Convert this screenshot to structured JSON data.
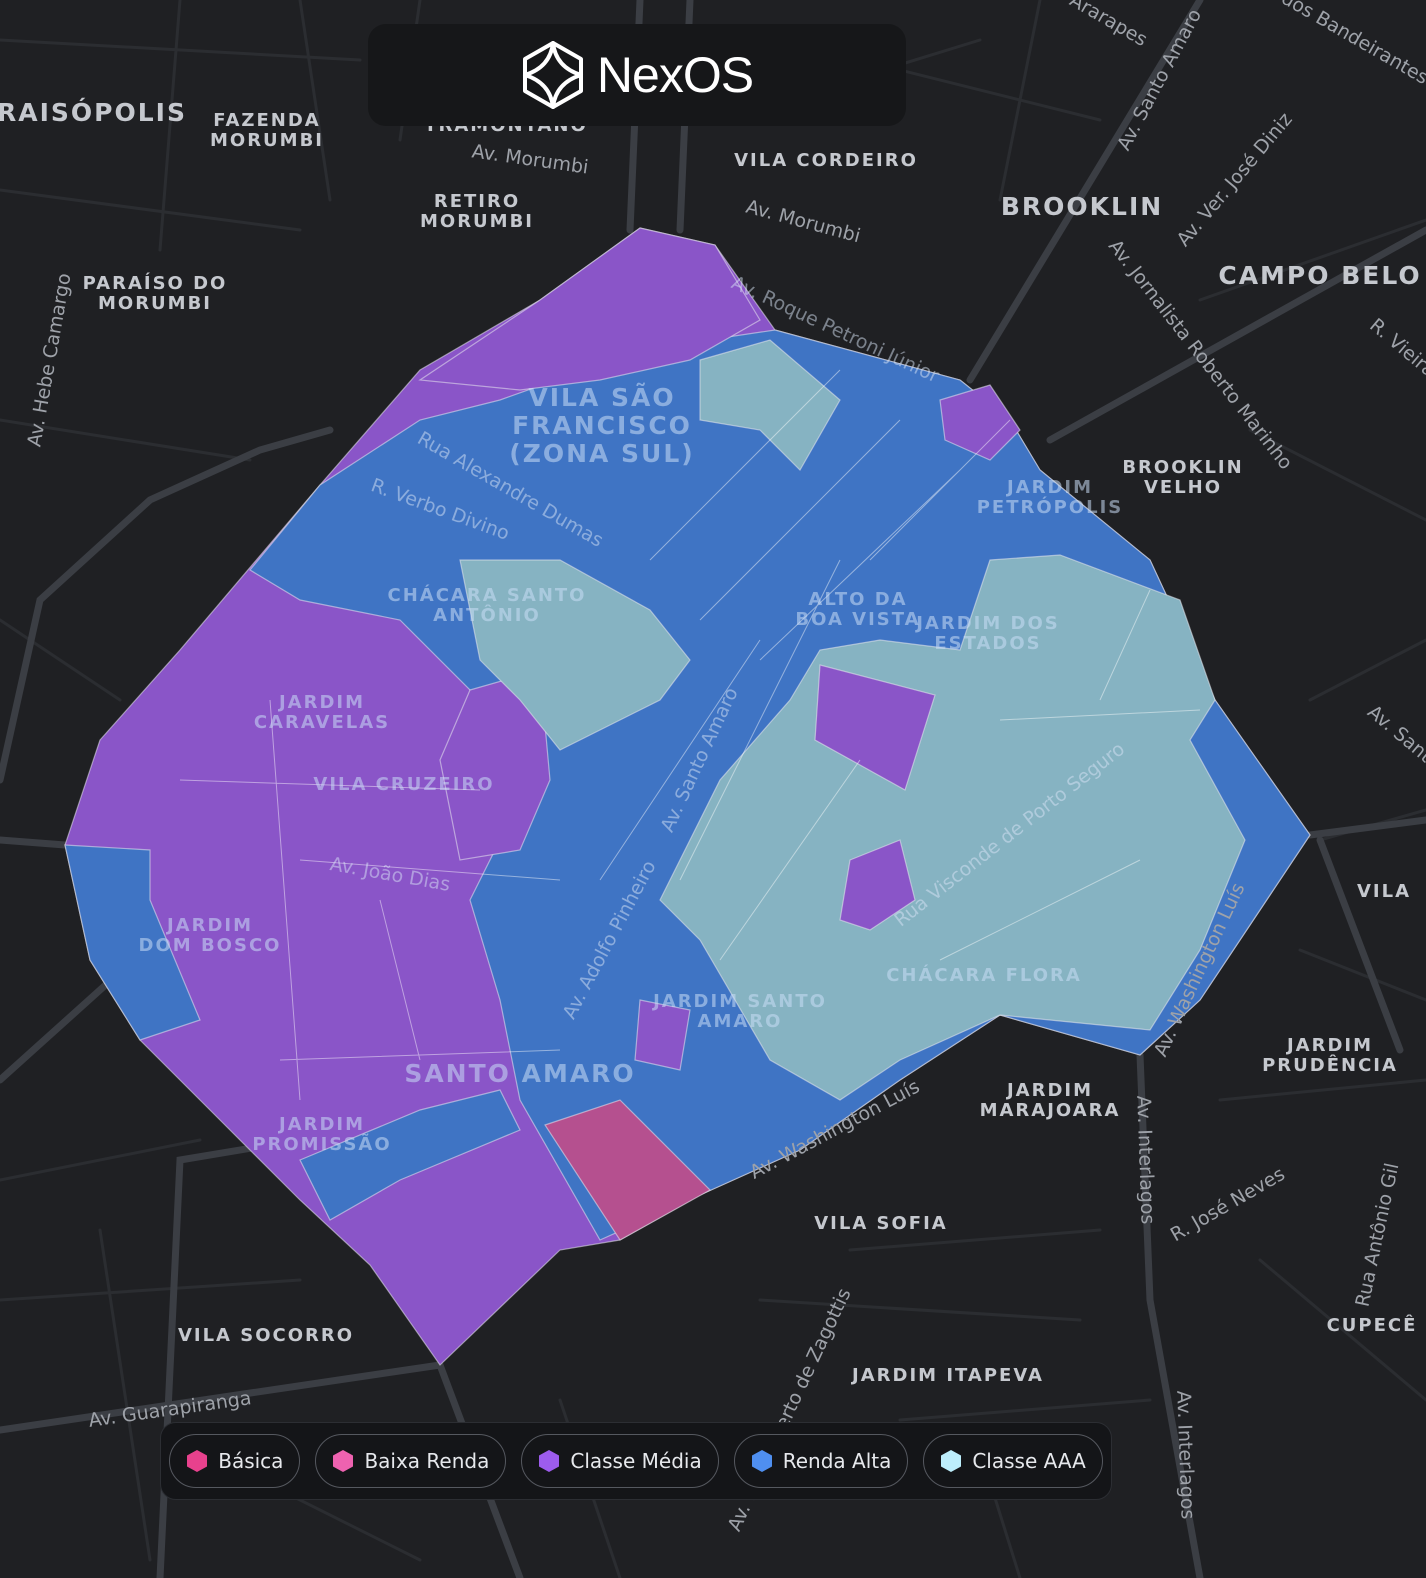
{
  "header": {
    "brand": "NexOS"
  },
  "map": {
    "neighborhoods": [
      [
        "RAISÓPOLIS"
      ],
      [
        "FAZENDA",
        "MORUMBI"
      ],
      [
        "TRAMONTANO"
      ],
      [
        "VILA CORDEIRO"
      ],
      [
        "RETIRO",
        "MORUMBI"
      ],
      [
        "BROOKLIN"
      ],
      [
        "CAMPO BELO"
      ],
      [
        "PARAÍSO DO",
        "MORUMBI"
      ],
      [
        "VILA SÃO",
        "FRANCISCO",
        "(ZONA SUL)"
      ],
      [
        "BROOKLIN",
        "VELHO"
      ],
      [
        "JARDIM",
        "PETRÓPOLIS"
      ],
      [
        "CHÁCARA SANTO",
        "ANTÔNIO"
      ],
      [
        "ALTO DA",
        "BOA VISTA"
      ],
      [
        "JARDIM DOS",
        "ESTADOS"
      ],
      [
        "JARDIM",
        "CARAVELAS"
      ],
      [
        "VILA CRUZEIRO"
      ],
      [
        "JARDIM",
        "DOM BOSCO"
      ],
      [
        "VILA"
      ],
      [
        "CHÁCARA FLORA"
      ],
      [
        "JARDIM SANTO",
        "AMARO"
      ],
      [
        "JARDIM",
        "PRUDÊNCIA"
      ],
      [
        "SANTO AMARO"
      ],
      [
        "JARDIM",
        "MARAJOARA"
      ],
      [
        "JARDIM",
        "PROMISSÃO"
      ],
      [
        "VILA SOFIA"
      ],
      [
        "VILA SOCORRO"
      ],
      [
        "CUPECÊ"
      ],
      [
        "JARDIM ITAPEVA"
      ]
    ],
    "streets": [
      "Av. Morumbi",
      "Av. Morumbi",
      "Av. Santo Amaro",
      "Av. Ver. José Diniz",
      "Av. Jornalista Roberto Marinho",
      "Av. Roque Petroni Júnior",
      "Rua Alexandre Dumas",
      "R. Verbo Divino",
      "Av. Hebe Camargo",
      "Av. Santo Amaro",
      "Av. João Dias",
      "Av. Adolfo Pinheiro",
      "Rua Visconde de Porto Seguro",
      "Av. Washington Luís",
      "Av. Washington Luís",
      "Av. Interlagos",
      "Av. Interlagos",
      "R. José Neves",
      "Av. Guarapiranga",
      "Rua Antônio Gil",
      "Av. Santo Amaro",
      "R. Vieira de Morais",
      "Rua Ararapes",
      "Av. dos Bandeirantes",
      "Av. Eng. Alberto de Zagottis"
    ]
  },
  "legend": [
    {
      "label": "Básica",
      "color": "#e8418d"
    },
    {
      "label": "Baixa Renda",
      "color": "#ee62b0"
    },
    {
      "label": "Classe Média",
      "color": "#9d5ced"
    },
    {
      "label": "Renda Alta",
      "color": "#4f8ff0"
    },
    {
      "label": "Classe AAA",
      "color": "#bdeefc"
    }
  ]
}
